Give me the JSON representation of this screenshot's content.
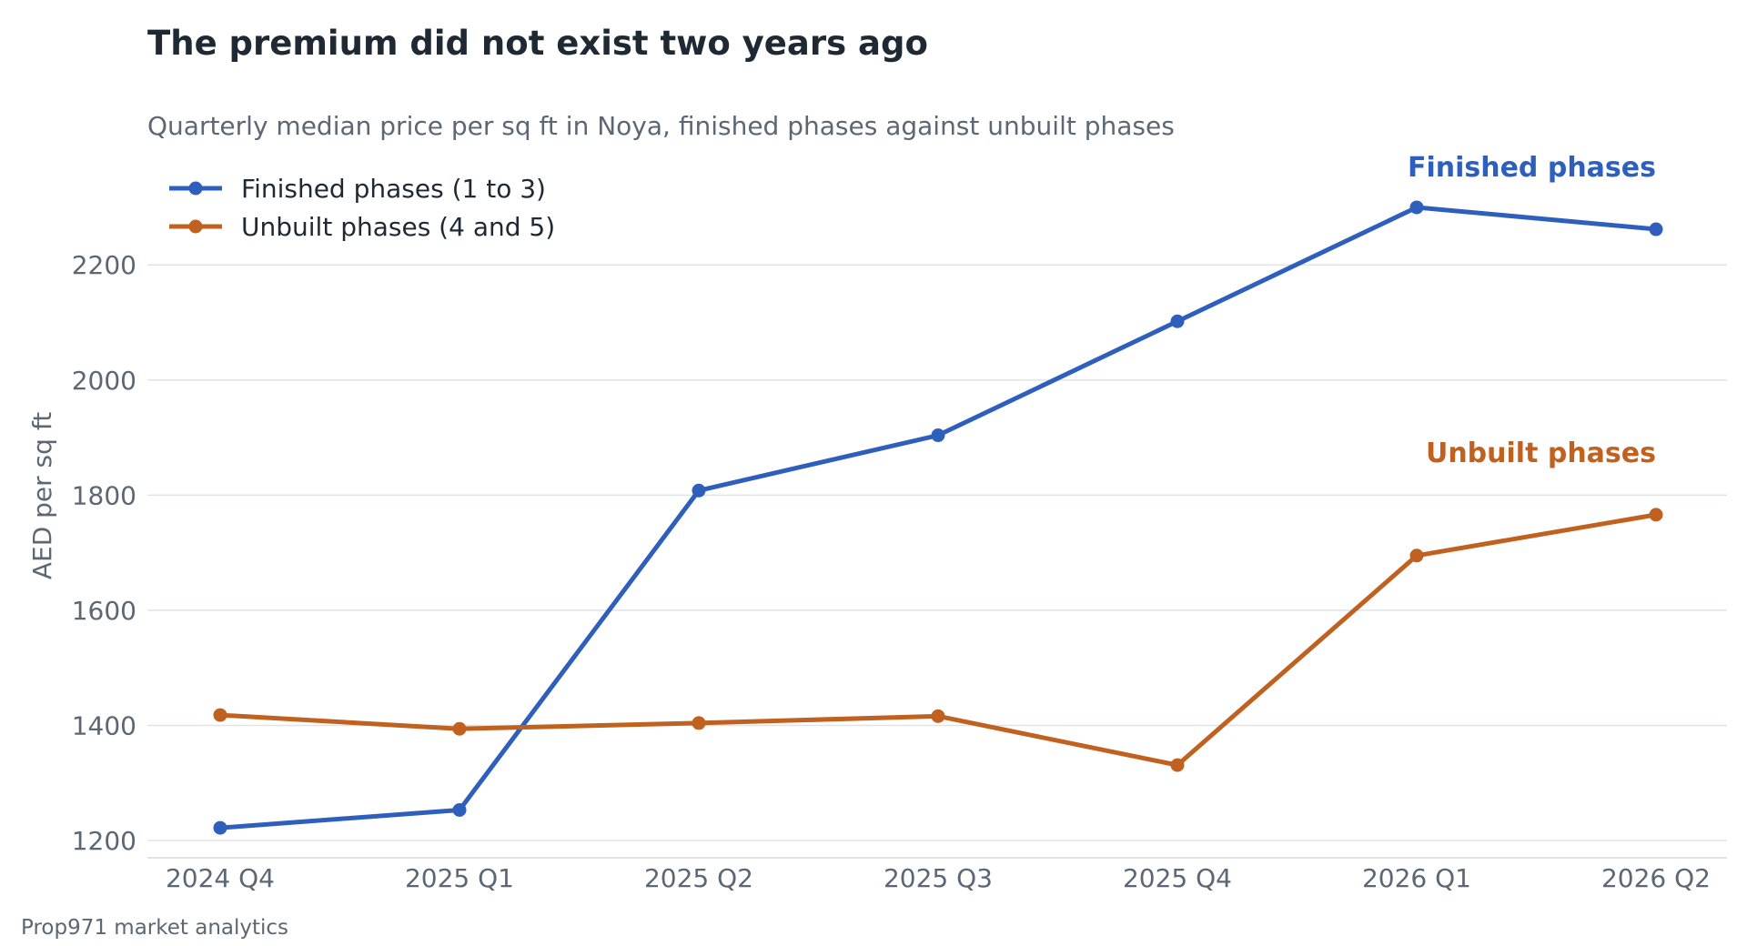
{
  "chart_data": {
    "type": "line",
    "title": "The premium did not exist two years ago",
    "subtitle": "Quarterly median price per sq ft in Noya, finished phases against unbuilt phases",
    "xlabel": "",
    "ylabel": "AED per sq ft",
    "categories": [
      "2024 Q4",
      "2025 Q1",
      "2025 Q2",
      "2025 Q3",
      "2025 Q4",
      "2026 Q1",
      "2026 Q2"
    ],
    "yticks": [
      1200,
      1400,
      1600,
      1800,
      2000,
      2200
    ],
    "ylim": [
      1170,
      2360
    ],
    "grid": "horizontal",
    "legend_position": "top-left",
    "series": [
      {
        "name": "Finished phases (1 to 3)",
        "end_label": "Finished phases",
        "color": "#2f5fbd",
        "values": [
          1222,
          1253,
          1808,
          1904,
          2102,
          2300,
          2262
        ]
      },
      {
        "name": "Unbuilt phases (4 and 5)",
        "end_label": "Unbuilt phases",
        "color": "#c0611f",
        "values": [
          1418,
          1394,
          1404,
          1416,
          1331,
          1695,
          1766
        ]
      }
    ]
  },
  "footer": {
    "source": "Prop971 market analytics"
  }
}
